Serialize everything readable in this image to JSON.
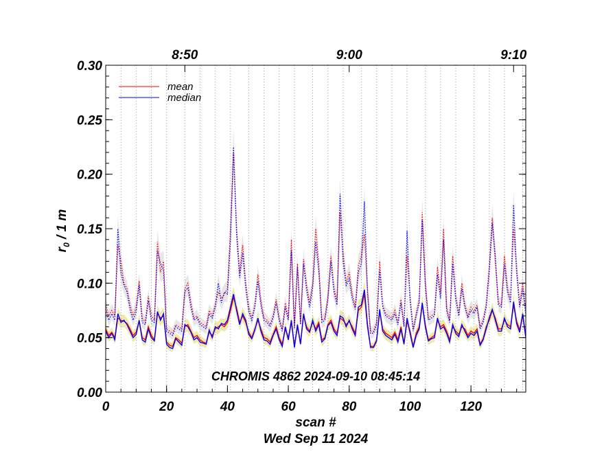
{
  "chart_data": {
    "type": "line",
    "annotation": "CHROMIS 4862 2024-09-10 08:45:14",
    "xlabel": "scan #",
    "date_label": "Wed Sep 11 2024",
    "ylabel_main": "r",
    "ylabel_sub": "0",
    "ylabel_rest": " / 1 m",
    "xlim": [
      0,
      138
    ],
    "ylim": [
      0.0,
      0.3
    ],
    "x_ticks": [
      0,
      20,
      40,
      60,
      80,
      100,
      120
    ],
    "x_tick_labels": [
      "0",
      "20",
      "40",
      "60",
      "80",
      "100",
      "120"
    ],
    "y_ticks": [
      0.0,
      0.05,
      0.1,
      0.15,
      0.2,
      0.25,
      0.3
    ],
    "y_tick_labels": [
      "0.00",
      "0.05",
      "0.10",
      "0.15",
      "0.20",
      "0.25",
      "0.30"
    ],
    "top_axis": {
      "labels": [
        "8:50",
        "9:00",
        "9:10"
      ],
      "positions": [
        26,
        80,
        134
      ]
    },
    "gridlines_x": [
      5,
      10,
      15,
      20,
      26,
      31,
      36,
      41,
      47,
      52,
      57,
      62,
      68,
      73,
      78,
      84,
      89,
      94,
      99,
      105,
      110,
      115,
      121,
      126,
      131,
      137
    ],
    "legend": [
      {
        "label": "mean",
        "color": "#ff0000"
      },
      {
        "label": "median",
        "color": "#0000ff"
      }
    ],
    "colors": {
      "mean": "#ff0000",
      "median": "#0000ff",
      "upper_band": "#e6e6e6",
      "lower_band": "#eee8aa"
    },
    "series": [
      {
        "name": "mean_lower",
        "values": [
          0.058,
          0.052,
          0.055,
          0.05,
          0.068,
          0.066,
          0.065,
          0.063,
          0.058,
          0.052,
          0.055,
          0.065,
          0.05,
          0.048,
          0.06,
          0.052,
          0.048,
          0.072,
          0.068,
          0.07,
          0.046,
          0.043,
          0.042,
          0.05,
          0.048,
          0.045,
          0.06,
          0.062,
          0.056,
          0.05,
          0.052,
          0.048,
          0.046,
          0.045,
          0.055,
          0.052,
          0.058,
          0.06,
          0.062,
          0.06,
          0.064,
          0.075,
          0.087,
          0.077,
          0.064,
          0.07,
          0.064,
          0.055,
          0.05,
          0.058,
          0.066,
          0.058,
          0.05,
          0.049,
          0.046,
          0.053,
          0.06,
          0.05,
          0.044,
          0.058,
          0.05,
          0.064,
          0.043,
          0.06,
          0.045,
          0.07,
          0.06,
          0.056,
          0.064,
          0.058,
          0.064,
          0.048,
          0.05,
          0.062,
          0.066,
          0.058,
          0.054,
          0.068,
          0.066,
          0.062,
          0.065,
          0.06,
          0.054,
          0.075,
          0.078,
          0.09,
          0.06,
          0.042,
          0.042,
          0.048,
          0.074,
          0.058,
          0.054,
          0.052,
          0.05,
          0.055,
          0.048,
          0.06,
          0.045,
          0.065,
          0.056,
          0.042,
          0.054,
          0.06,
          0.08,
          0.062,
          0.048,
          0.05,
          0.052,
          0.066,
          0.06,
          0.062,
          0.056,
          0.048,
          0.06,
          0.056,
          0.053,
          0.06,
          0.058,
          0.052,
          0.056,
          0.054,
          0.058,
          0.044,
          0.049,
          0.06,
          0.066,
          0.075,
          0.068,
          0.058,
          0.058,
          0.066,
          0.062,
          0.06,
          0.08,
          0.065,
          0.057,
          0.07,
          0.052
        ]
      },
      {
        "name": "median_lower",
        "values": [
          0.056,
          0.05,
          0.054,
          0.048,
          0.072,
          0.064,
          0.066,
          0.062,
          0.056,
          0.05,
          0.053,
          0.066,
          0.048,
          0.046,
          0.058,
          0.05,
          0.047,
          0.074,
          0.066,
          0.072,
          0.044,
          0.041,
          0.04,
          0.049,
          0.046,
          0.043,
          0.062,
          0.06,
          0.055,
          0.048,
          0.05,
          0.046,
          0.045,
          0.044,
          0.057,
          0.05,
          0.06,
          0.058,
          0.063,
          0.062,
          0.066,
          0.078,
          0.09,
          0.075,
          0.062,
          0.072,
          0.066,
          0.053,
          0.049,
          0.057,
          0.068,
          0.056,
          0.048,
          0.047,
          0.044,
          0.052,
          0.058,
          0.048,
          0.042,
          0.06,
          0.048,
          0.066,
          0.041,
          0.062,
          0.044,
          0.072,
          0.058,
          0.055,
          0.066,
          0.056,
          0.062,
          0.046,
          0.049,
          0.061,
          0.064,
          0.056,
          0.052,
          0.07,
          0.068,
          0.06,
          0.066,
          0.058,
          0.052,
          0.078,
          0.08,
          0.094,
          0.062,
          0.041,
          0.041,
          0.047,
          0.076,
          0.056,
          0.052,
          0.05,
          0.048,
          0.053,
          0.046,
          0.058,
          0.044,
          0.068,
          0.054,
          0.041,
          0.052,
          0.058,
          0.082,
          0.06,
          0.047,
          0.049,
          0.05,
          0.068,
          0.058,
          0.06,
          0.054,
          0.046,
          0.062,
          0.054,
          0.051,
          0.062,
          0.056,
          0.05,
          0.054,
          0.052,
          0.056,
          0.043,
          0.048,
          0.058,
          0.068,
          0.076,
          0.066,
          0.056,
          0.056,
          0.068,
          0.06,
          0.058,
          0.083,
          0.063,
          0.055,
          0.072,
          0.05
        ]
      },
      {
        "name": "mean_upper",
        "values": [
          0.08,
          0.07,
          0.075,
          0.07,
          0.135,
          0.12,
          0.1,
          0.095,
          0.08,
          0.07,
          0.078,
          0.102,
          0.068,
          0.064,
          0.088,
          0.07,
          0.066,
          0.138,
          0.11,
          0.12,
          0.058,
          0.056,
          0.054,
          0.062,
          0.06,
          0.058,
          0.095,
          0.1,
          0.082,
          0.068,
          0.07,
          0.064,
          0.062,
          0.06,
          0.075,
          0.07,
          0.08,
          0.092,
          0.086,
          0.09,
          0.095,
          0.15,
          0.22,
          0.15,
          0.11,
          0.135,
          0.1,
          0.078,
          0.068,
          0.08,
          0.108,
          0.084,
          0.068,
          0.066,
          0.062,
          0.07,
          0.085,
          0.068,
          0.058,
          0.082,
          0.068,
          0.14,
          0.06,
          0.118,
          0.064,
          0.122,
          0.098,
          0.082,
          0.1,
          0.15,
          0.118,
          0.066,
          0.068,
          0.088,
          0.125,
          0.095,
          0.084,
          0.165,
          0.128,
          0.1,
          0.11,
          0.09,
          0.078,
          0.116,
          0.125,
          0.145,
          0.095,
          0.056,
          0.056,
          0.064,
          0.12,
          0.08,
          0.072,
          0.07,
          0.068,
          0.075,
          0.064,
          0.085,
          0.062,
          0.125,
          0.088,
          0.058,
          0.072,
          0.085,
          0.165,
          0.102,
          0.068,
          0.07,
          0.072,
          0.115,
          0.09,
          0.15,
          0.078,
          0.066,
          0.125,
          0.088,
          0.072,
          0.1,
          0.08,
          0.07,
          0.078,
          0.074,
          0.08,
          0.06,
          0.066,
          0.08,
          0.115,
          0.16,
          0.12,
          0.082,
          0.08,
          0.125,
          0.095,
          0.085,
          0.15,
          0.115,
          0.08,
          0.1,
          0.075
        ]
      },
      {
        "name": "median_upper",
        "values": [
          0.076,
          0.066,
          0.072,
          0.066,
          0.15,
          0.11,
          0.098,
          0.092,
          0.076,
          0.066,
          0.074,
          0.098,
          0.064,
          0.062,
          0.084,
          0.066,
          0.064,
          0.13,
          0.118,
          0.112,
          0.056,
          0.054,
          0.052,
          0.06,
          0.058,
          0.056,
          0.092,
          0.096,
          0.078,
          0.066,
          0.068,
          0.062,
          0.06,
          0.058,
          0.072,
          0.068,
          0.078,
          0.1,
          0.082,
          0.092,
          0.09,
          0.14,
          0.225,
          0.145,
          0.105,
          0.128,
          0.096,
          0.074,
          0.066,
          0.078,
          0.102,
          0.08,
          0.066,
          0.064,
          0.06,
          0.068,
          0.082,
          0.066,
          0.056,
          0.078,
          0.066,
          0.13,
          0.058,
          0.115,
          0.062,
          0.118,
          0.094,
          0.078,
          0.096,
          0.138,
          0.112,
          0.064,
          0.066,
          0.085,
          0.12,
          0.092,
          0.08,
          0.182,
          0.12,
          0.098,
          0.104,
          0.086,
          0.076,
          0.11,
          0.118,
          0.175,
          0.092,
          0.054,
          0.054,
          0.062,
          0.112,
          0.078,
          0.07,
          0.068,
          0.066,
          0.072,
          0.062,
          0.082,
          0.06,
          0.148,
          0.084,
          0.056,
          0.07,
          0.082,
          0.158,
          0.098,
          0.066,
          0.068,
          0.07,
          0.108,
          0.086,
          0.14,
          0.075,
          0.064,
          0.118,
          0.085,
          0.07,
          0.095,
          0.078,
          0.068,
          0.075,
          0.072,
          0.078,
          0.058,
          0.064,
          0.078,
          0.11,
          0.155,
          0.125,
          0.08,
          0.078,
          0.118,
          0.092,
          0.082,
          0.172,
          0.11,
          0.078,
          0.095,
          0.072
        ]
      }
    ]
  }
}
